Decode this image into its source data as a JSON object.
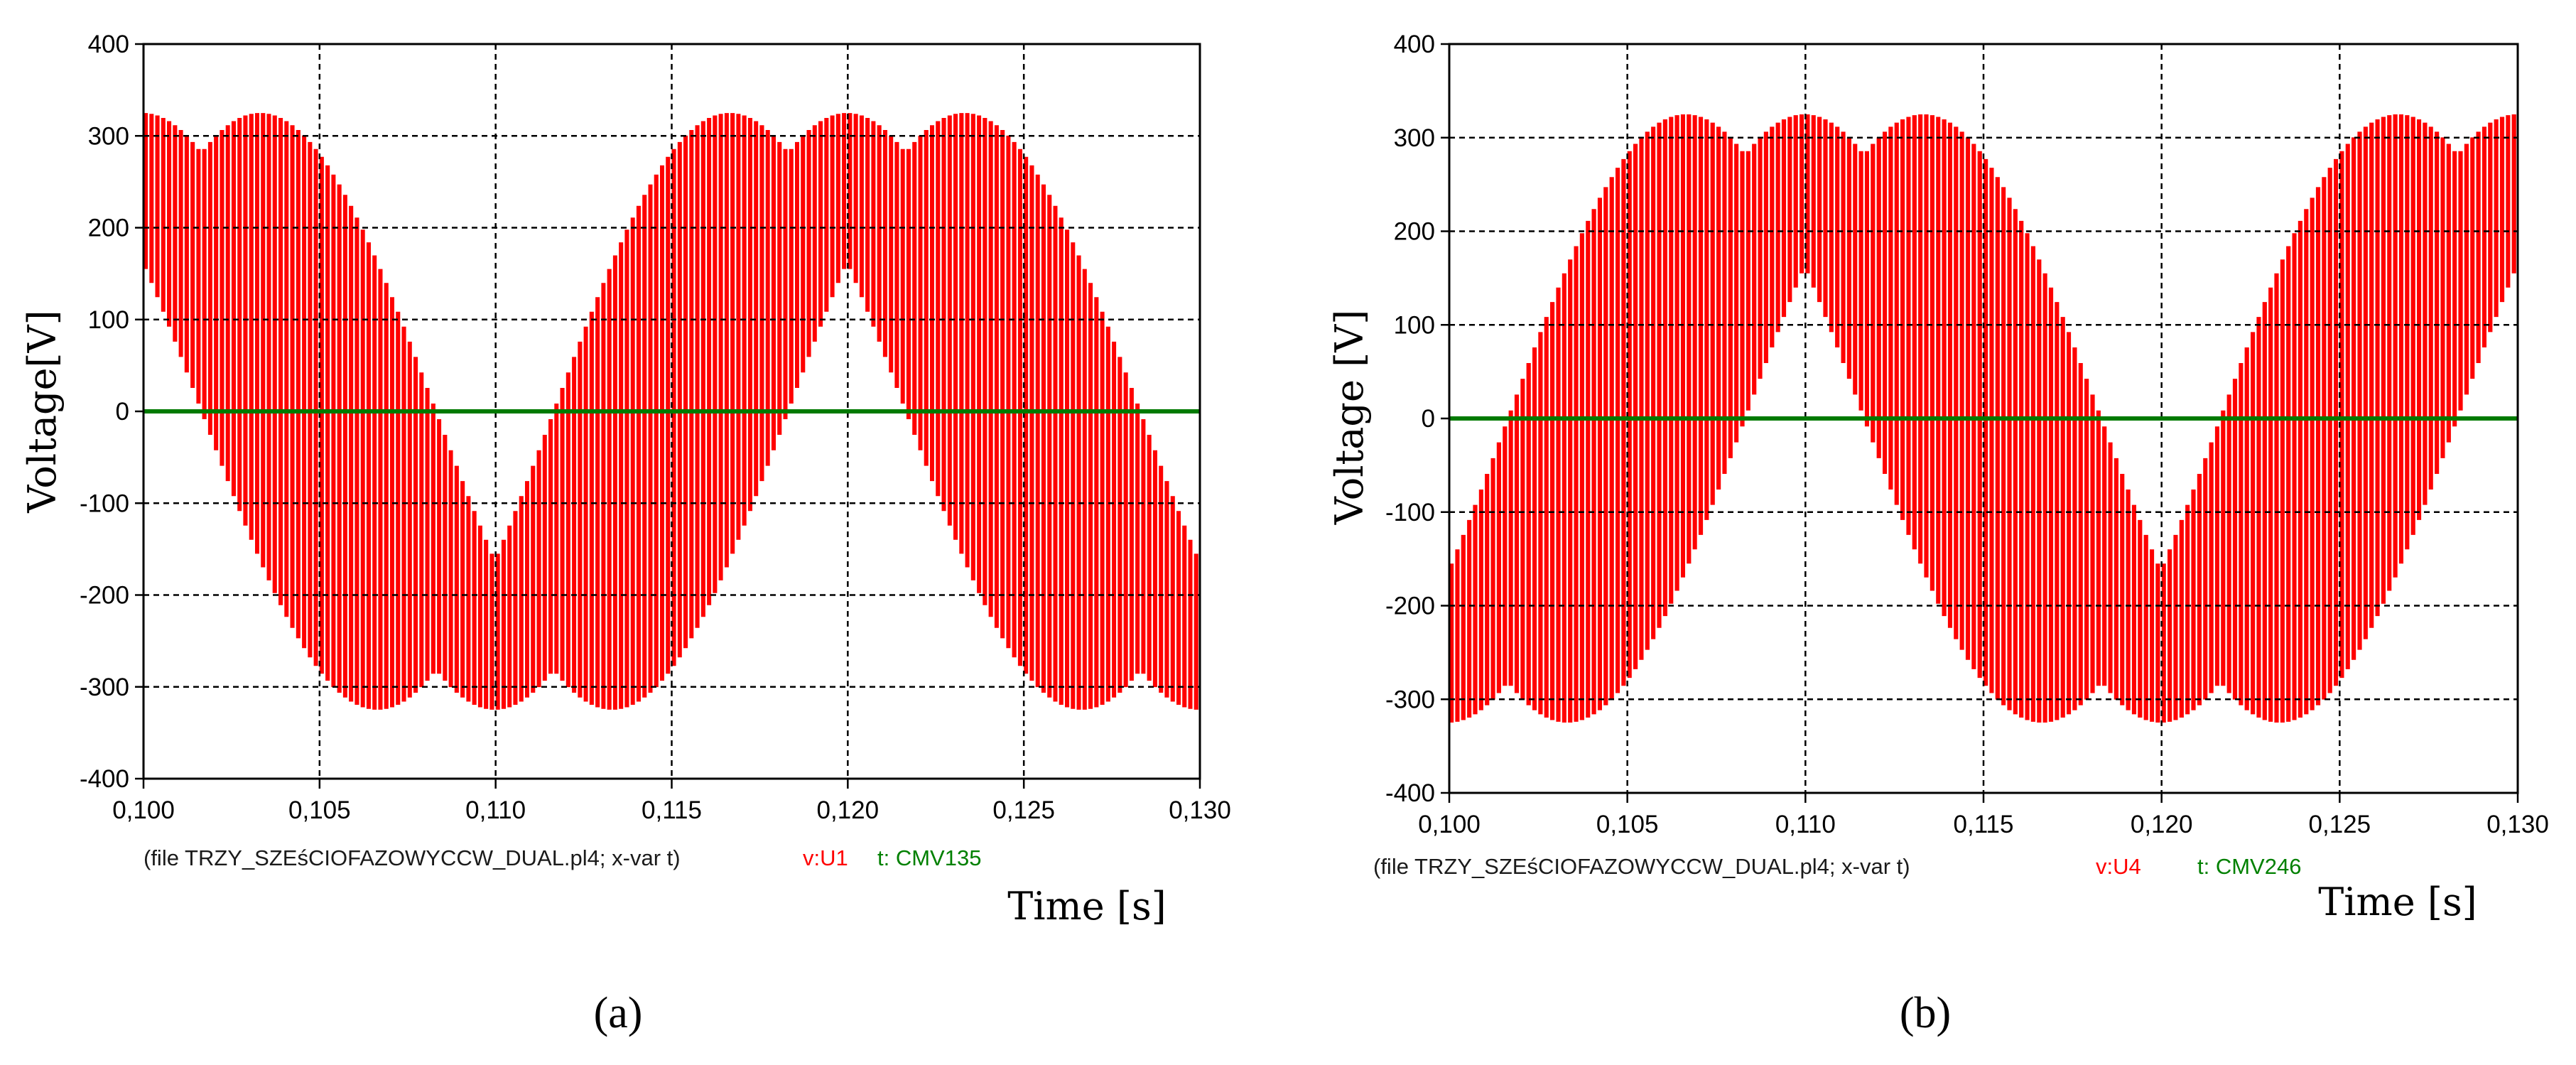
{
  "colors": {
    "v_trace": "#ff0000",
    "t_trace": "#007a00",
    "grid": "#000000",
    "frame": "#000000",
    "legend_file": "#1a1a1a",
    "legend_v": "#ff0000",
    "legend_t": "#008000"
  },
  "chart_data": [
    {
      "id": "a",
      "type": "line",
      "caption": "(a)",
      "xlabel": "Time [s]",
      "ylabel": "Voltage[V]",
      "xlim": [
        0.1,
        0.13
      ],
      "ylim": [
        -400,
        400
      ],
      "x_ticks": [
        0.1,
        0.105,
        0.11,
        0.115,
        0.12,
        0.125,
        0.13
      ],
      "x_tick_labels": [
        "0,100",
        "0,105",
        "0,110",
        "0,115",
        "0,120",
        "0,125",
        "0,130"
      ],
      "y_ticks": [
        400,
        300,
        200,
        100,
        0,
        -100,
        -200,
        -300,
        -400
      ],
      "y_tick_labels": [
        "400",
        "300",
        "200",
        "100",
        "0",
        "-100",
        "-200",
        "-300",
        "-400"
      ],
      "grid": true,
      "legend": {
        "file_text": "(file TRZY_SZEśCIOFAZOWYCCW_DUAL.pl4; x-var t)",
        "v_label": "v:U1",
        "t_label": "t: CMV135"
      },
      "series": [
        {
          "name": "v:U1",
          "kind": "pwm_envelope",
          "amplitude": 325,
          "frequency_hz": 50,
          "phase_deg": 90,
          "offset_deg": 60,
          "pulses": 180
        },
        {
          "name": "t: CMV135",
          "kind": "constant",
          "value": 0
        }
      ]
    },
    {
      "id": "b",
      "type": "line",
      "caption": "(b)",
      "xlabel": "Time [s]",
      "ylabel": "Voltage [V]",
      "xlim": [
        0.1,
        0.13
      ],
      "ylim": [
        -400,
        400
      ],
      "x_ticks": [
        0.1,
        0.105,
        0.11,
        0.115,
        0.12,
        0.125,
        0.13
      ],
      "x_tick_labels": [
        "0,100",
        "0,105",
        "0,110",
        "0,115",
        "0,120",
        "0,125",
        "0,130"
      ],
      "y_ticks": [
        400,
        300,
        200,
        100,
        0,
        -100,
        -200,
        -300,
        -400
      ],
      "y_tick_labels": [
        "400",
        "300",
        "200",
        "100",
        "0",
        "-100",
        "-200",
        "-300",
        "-400"
      ],
      "grid": true,
      "legend": {
        "file_text": "(file TRZY_SZEśCIOFAZOWYCCW_DUAL.pl4; x-var t)",
        "v_label": "v:U4",
        "t_label": "t: CMV246"
      },
      "series": [
        {
          "name": "v:U4",
          "kind": "pwm_envelope",
          "amplitude": 325,
          "frequency_hz": 50,
          "phase_deg": -90,
          "offset_deg": 60,
          "pulses": 180
        },
        {
          "name": "t: CMV246",
          "kind": "constant",
          "value": 0
        }
      ]
    }
  ]
}
